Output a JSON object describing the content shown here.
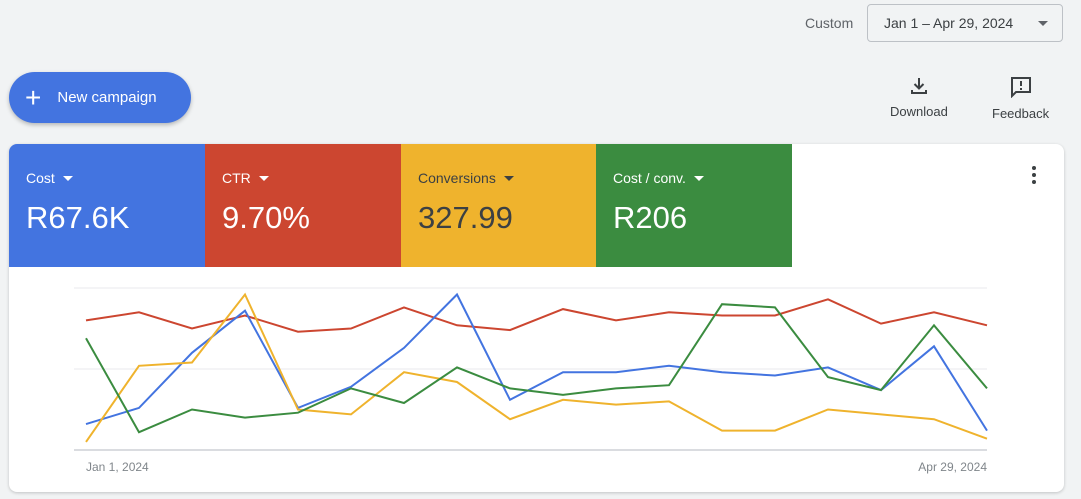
{
  "header": {
    "range_label": "Custom",
    "date_range": "Jan 1 – Apr 29, 2024"
  },
  "toolbar": {
    "new_campaign": "New campaign",
    "download": "Download",
    "feedback": "Feedback"
  },
  "metrics": [
    {
      "label": "Cost",
      "value": "R67.6K",
      "color": "#4374e0"
    },
    {
      "label": "CTR",
      "value": "9.70%",
      "color": "#cc4630"
    },
    {
      "label": "Conversions",
      "value": "327.99",
      "color": "#efb32d"
    },
    {
      "label": "Cost / conv.",
      "value": "R206",
      "color": "#3b8c40"
    }
  ],
  "chart_data": {
    "type": "line",
    "x_start_label": "Jan 1, 2024",
    "x_end_label": "Apr 29, 2024",
    "x": [
      "2024-01-01",
      "2024-01-08",
      "2024-01-15",
      "2024-01-22",
      "2024-01-29",
      "2024-02-05",
      "2024-02-12",
      "2024-02-19",
      "2024-02-26",
      "2024-03-04",
      "2024-03-11",
      "2024-03-18",
      "2024-03-25",
      "2024-04-01",
      "2024-04-08",
      "2024-04-15",
      "2024-04-22",
      "2024-04-29"
    ],
    "ylim": [
      0,
      100
    ],
    "y_scale": "relative, unlabeled",
    "grid": true,
    "series": [
      {
        "name": "CTR",
        "color": "#cc4630",
        "values": [
          80,
          85,
          75,
          83,
          73,
          75,
          88,
          77,
          74,
          87,
          80,
          85,
          83,
          83,
          93,
          78,
          85,
          77
        ]
      },
      {
        "name": "Cost",
        "color": "#4374e0",
        "values": [
          16,
          26,
          60,
          86,
          26,
          39,
          63,
          96,
          31,
          48,
          48,
          52,
          48,
          46,
          51,
          37,
          64,
          12
        ]
      },
      {
        "name": "Conversions",
        "color": "#efb32d",
        "values": [
          5,
          52,
          54,
          96,
          25,
          22,
          48,
          42,
          19,
          31,
          28,
          30,
          12,
          12,
          25,
          22,
          19,
          7
        ]
      },
      {
        "name": "Cost / conv.",
        "color": "#3b8c40",
        "values": [
          69,
          11,
          25,
          20,
          23,
          38,
          29,
          51,
          38,
          34,
          38,
          40,
          90,
          88,
          45,
          37,
          77,
          38
        ]
      }
    ]
  }
}
